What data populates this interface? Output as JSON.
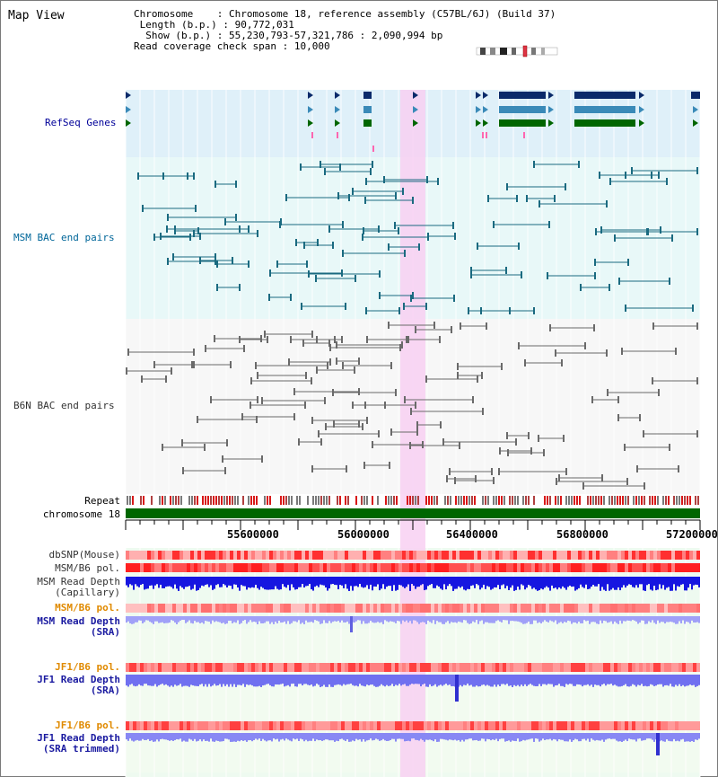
{
  "app": {
    "title": "Map View"
  },
  "info": {
    "chromosome_label": "Chromosome",
    "chromosome_value": "Chromosome 18, reference assembly (C57BL/6J) (Build 37)",
    "length_label": "Length (b.p.)",
    "length_value": "90,772,031",
    "show_label": "Show (b.p.)",
    "show_value": "55,230,793-57,321,786 : 2,090,994 bp",
    "coverage_label": "Read coverage check span",
    "coverage_value": "10,000"
  },
  "tracks": {
    "refseq": "RefSeq Genes",
    "msm_bac": "MSM BAC end pairs",
    "b6n_bac": "B6N BAC end pairs",
    "repeat": "Repeat",
    "chromosome": "chromosome 18",
    "dbsnp": "dbSNP(Mouse)",
    "msm_b6_pol": "MSM/B6 pol.",
    "msm_read_depth_cap_1": "MSM Read Depth",
    "msm_read_depth_cap_2": "(Capillary)",
    "msm_b6_pol_2": "MSM/B6 pol.",
    "msm_read_depth_sra_1": "MSM Read Depth",
    "msm_read_depth_sra_2": "(SRA)",
    "jf1_b6_pol": "JF1/B6 pol.",
    "jf1_read_depth_sra_1": "JF1 Read Depth",
    "jf1_read_depth_sra_2": "(SRA)",
    "jf1_b6_pol_2": "JF1/B6 pol.",
    "jf1_read_depth_trim_1": "JF1 Read Depth",
    "jf1_read_depth_trim_2": "(SRA trimmed)"
  },
  "axis": {
    "ticks": [
      "55600000",
      "56000000",
      "56400000",
      "56800000",
      "57200000"
    ]
  },
  "colors": {
    "refseq_label": "#000099",
    "msm_label": "#006699",
    "b6n_label": "#333333",
    "pol_orange": "#e08a00",
    "depth_blue": "#1a1aa0",
    "highlight": "#f7d0f0"
  }
}
